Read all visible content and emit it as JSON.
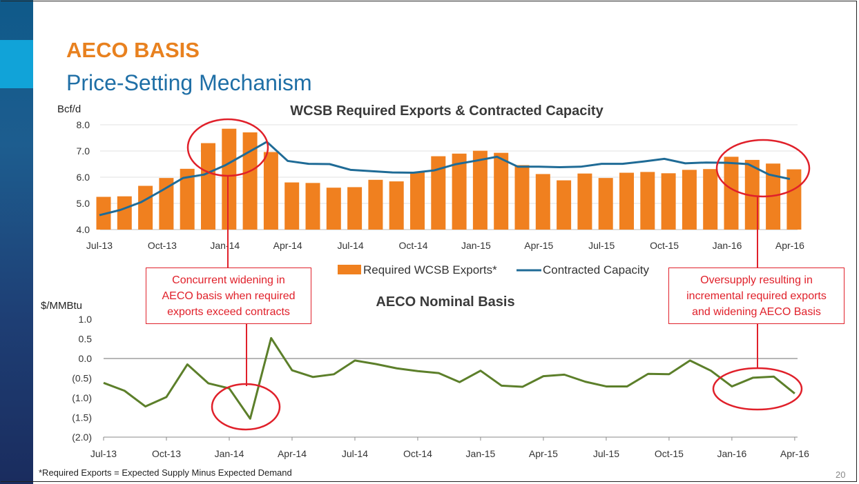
{
  "slide": {
    "title": "AECO BASIS",
    "subtitle": "Price-Setting Mechanism",
    "footnote": "*Required Exports = Expected Supply Minus Expected Demand",
    "page_number": "20"
  },
  "callouts": {
    "left": [
      "Concurrent widening in",
      "AECO basis when required",
      "exports exceed contracts"
    ],
    "right": [
      "Oversupply resulting in",
      "incremental required exports",
      "and widening AECO Basis"
    ]
  },
  "colors": {
    "bar": "#f0801f",
    "capacity_line": "#1f6b96",
    "basis_line": "#5c7f2a",
    "highlight": "#e0202a"
  },
  "chart_data": [
    {
      "type": "bar",
      "title": "WCSB Required Exports & Contracted Capacity",
      "ylabel": "Bcf/d",
      "ylim": [
        4.0,
        8.0
      ],
      "yticks": [
        "4.0",
        "5.0",
        "6.0",
        "7.0",
        "8.0"
      ],
      "xtick_labels": [
        "Jul-13",
        "Oct-13",
        "Jan-14",
        "Apr-14",
        "Jul-14",
        "Oct-14",
        "Jan-15",
        "Apr-15",
        "Jul-15",
        "Oct-15",
        "Jan-16",
        "Apr-16"
      ],
      "categories": [
        "Jul-13",
        "Aug-13",
        "Sep-13",
        "Oct-13",
        "Nov-13",
        "Dec-13",
        "Jan-14",
        "Feb-14",
        "Mar-14",
        "Apr-14",
        "May-14",
        "Jun-14",
        "Jul-14",
        "Aug-14",
        "Sep-14",
        "Oct-14",
        "Nov-14",
        "Dec-14",
        "Jan-15",
        "Feb-15",
        "Mar-15",
        "Apr-15",
        "May-15",
        "Jun-15",
        "Jul-15",
        "Aug-15",
        "Sep-15",
        "Oct-15",
        "Nov-15",
        "Dec-15",
        "Jan-16",
        "Feb-16",
        "Mar-16",
        "Apr-16"
      ],
      "series": [
        {
          "name": "Required WCSB Exports*",
          "kind": "bar",
          "values": [
            5.25,
            5.27,
            5.67,
            5.97,
            6.32,
            7.3,
            7.85,
            7.71,
            6.96,
            5.8,
            5.78,
            5.6,
            5.62,
            5.9,
            5.84,
            6.2,
            6.8,
            6.9,
            7.01,
            6.93,
            6.46,
            6.12,
            5.88,
            6.14,
            5.97,
            6.17,
            6.2,
            6.15,
            6.28,
            6.31,
            6.78,
            6.66,
            6.52,
            6.3
          ]
        },
        {
          "name": "Contracted Capacity",
          "kind": "line",
          "values": [
            4.55,
            4.75,
            5.05,
            5.5,
            5.97,
            6.1,
            6.45,
            6.9,
            7.35,
            6.62,
            6.51,
            6.5,
            6.28,
            6.23,
            6.18,
            6.17,
            6.26,
            6.49,
            6.63,
            6.78,
            6.4,
            6.4,
            6.38,
            6.4,
            6.51,
            6.51,
            6.6,
            6.7,
            6.53,
            6.56,
            6.55,
            6.5,
            6.1,
            5.93
          ]
        }
      ],
      "legend_position": "bottom"
    },
    {
      "type": "line",
      "title": "AECO Nominal Basis",
      "ylabel": "$/MMBtu",
      "ylim": [
        -2.0,
        1.0
      ],
      "yticks": [
        "(2.0)",
        "(1.5)",
        "(1.0)",
        "(0.5)",
        "0.0",
        "0.5",
        "1.0"
      ],
      "xtick_labels": [
        "Jul-13",
        "Oct-13",
        "Jan-14",
        "Apr-14",
        "Jul-14",
        "Oct-14",
        "Jan-15",
        "Apr-15",
        "Jul-15",
        "Oct-15",
        "Jan-16",
        "Apr-16"
      ],
      "series": [
        {
          "name": "AECO Nominal Basis",
          "values": [
            -0.62,
            -0.82,
            -1.22,
            -0.98,
            -0.15,
            -0.63,
            -0.76,
            -1.53,
            0.52,
            -0.3,
            -0.47,
            -0.4,
            -0.05,
            -0.14,
            -0.25,
            -0.32,
            -0.37,
            -0.6,
            -0.31,
            -0.69,
            -0.72,
            -0.45,
            -0.41,
            -0.59,
            -0.71,
            -0.71,
            -0.39,
            -0.4,
            -0.05,
            -0.31,
            -0.71,
            -0.49,
            -0.46,
            -0.89
          ]
        }
      ]
    }
  ]
}
